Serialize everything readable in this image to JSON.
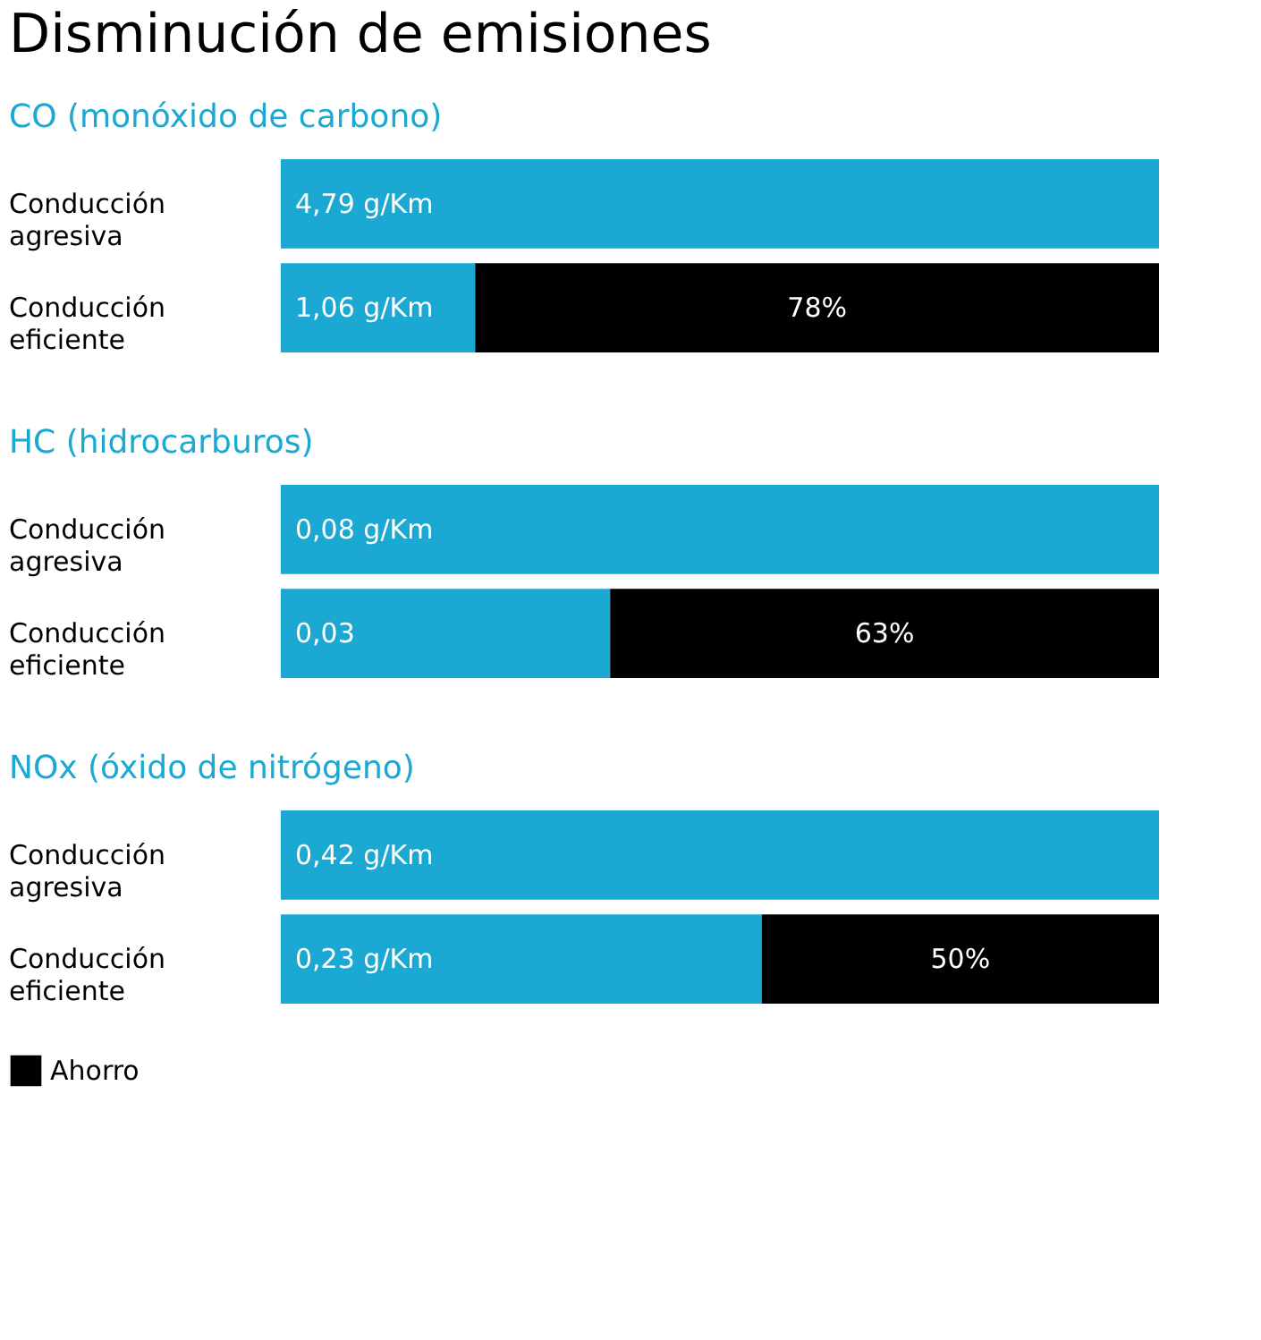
{
  "chart_data": [
    {
      "type": "bar",
      "orientation": "horizontal",
      "stacked": true,
      "title": "Disminución de emisiones",
      "subtitle": "CO (monóxido de carbono)",
      "categories": [
        "Conducción\nagresiva",
        "Conducción\neficiente"
      ],
      "tick_labels": false,
      "annotations": [
        "78%"
      ],
      "series": [
        {
          "color": "#1ba8d2",
          "values": [
            4.79,
            1.06
          ],
          "value_labels": [
            "4,79 g/Km",
            "1,06 g/Km"
          ]
        },
        {
          "color": "#000000",
          "values": [
            null,
            3.73
          ]
        }
      ]
    },
    {
      "type": "bar",
      "orientation": "horizontal",
      "stacked": true,
      "title": "HC (hidrocarburos)",
      "categories": [
        "Conducción\nagresiva",
        "Conducción\neficiente"
      ],
      "tick_labels": false,
      "annotations": [
        "63%"
      ],
      "series": [
        {
          "color": "#1ba8d2",
          "values": [
            0.08,
            0.03
          ],
          "value_labels": [
            "0,08 g/Km",
            "0,03"
          ]
        },
        {
          "color": "#000000",
          "values": [
            null,
            0.05
          ]
        }
      ]
    },
    {
      "type": "bar",
      "orientation": "horizontal",
      "stacked": true,
      "title": "NOx (óxido de nitrógeno)",
      "categories": [
        "Conducción\nagresiva",
        "Conducción\neficiente"
      ],
      "tick_labels": false,
      "legend": "bottom left",
      "annotations": [
        "50%"
      ],
      "series": [
        {
          "color": "#1ba8d2",
          "values": [
            0.42,
            0.23
          ],
          "value_labels": [
            "0,42 g/Km",
            "0,23 g/Km"
          ]
        },
        {
          "name": "Ahorro",
          "color": "#000000",
          "values": [
            null,
            0.19
          ]
        }
      ]
    }
  ]
}
